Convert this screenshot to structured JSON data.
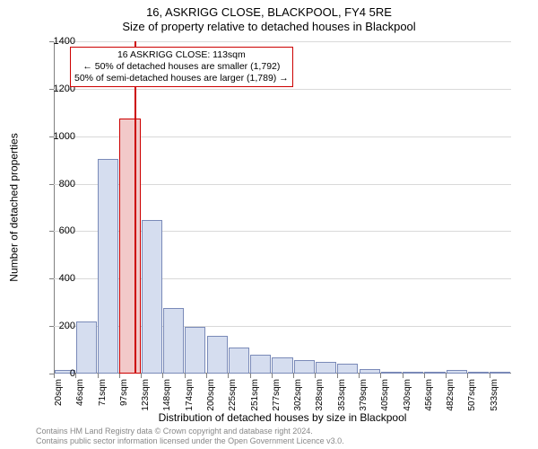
{
  "title_line1": "16, ASKRIGG CLOSE, BLACKPOOL, FY4 5RE",
  "title_line2": "Size of property relative to detached houses in Blackpool",
  "ylabel": "Number of detached properties",
  "xlabel": "Distribution of detached houses by size in Blackpool",
  "chart": {
    "type": "histogram",
    "background_color": "#ffffff",
    "grid_color": "#d9d9d9",
    "axis_color": "#808080",
    "bar_fill": "#d5ddef",
    "bar_border": "#7a8ab8",
    "highlight_fill": "#f2c9c9",
    "highlight_border": "#cc0000",
    "vline_color": "#cc0000",
    "ylim": [
      0,
      1400
    ],
    "ytick_step": 200,
    "yticks": [
      0,
      200,
      400,
      600,
      800,
      1000,
      1200,
      1400
    ],
    "xtick_labels": [
      "20sqm",
      "46sqm",
      "71sqm",
      "97sqm",
      "123sqm",
      "148sqm",
      "174sqm",
      "200sqm",
      "225sqm",
      "251sqm",
      "277sqm",
      "302sqm",
      "328sqm",
      "353sqm",
      "379sqm",
      "405sqm",
      "430sqm",
      "456sqm",
      "482sqm",
      "507sqm",
      "533sqm"
    ],
    "values": [
      15,
      220,
      905,
      1075,
      648,
      278,
      195,
      158,
      110,
      80,
      70,
      55,
      48,
      40,
      20,
      3,
      3,
      2,
      15,
      2,
      2
    ],
    "highlight_index": 3,
    "vline_value": 113,
    "x_range": [
      20,
      545
    ],
    "bar_width_ratio": 0.95,
    "label_fontsize": 12,
    "tick_fontsize": 11,
    "title_fontsize": 13
  },
  "annotation": {
    "line1": "16 ASKRIGG CLOSE: 113sqm",
    "line2": "← 50% of detached houses are smaller (1,792)",
    "line3": "50% of semi-detached houses are larger (1,789) →",
    "border_color": "#cc0000",
    "fontsize": 10.5
  },
  "footer": {
    "line1": "Contains HM Land Registry data © Crown copyright and database right 2024.",
    "line2": "Contains public sector information licensed under the Open Government Licence v3.0.",
    "color": "#888888",
    "fontsize": 9
  }
}
